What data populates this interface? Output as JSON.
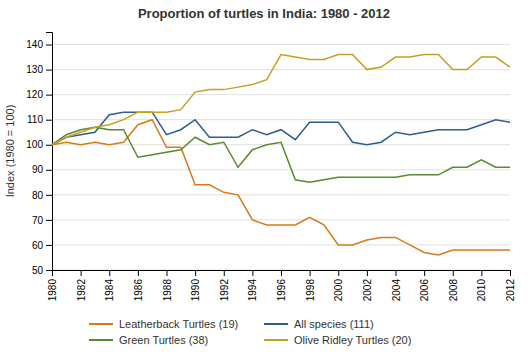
{
  "chart_data": {
    "type": "line",
    "title": "Proportion of turtles in India: 1980 - 2012",
    "ylabel": "Index (1980 = 100)",
    "x": [
      1980,
      1981,
      1982,
      1983,
      1984,
      1985,
      1986,
      1987,
      1988,
      1989,
      1990,
      1991,
      1992,
      1993,
      1994,
      1995,
      1996,
      1997,
      1998,
      1999,
      2000,
      2001,
      2002,
      2003,
      2004,
      2005,
      2006,
      2007,
      2008,
      2009,
      2010,
      2011,
      2012
    ],
    "series": [
      {
        "name": "Leatherback Turtles (19)",
        "color": "#d97a1a",
        "values": [
          100,
          101,
          100,
          101,
          100,
          101,
          108,
          110,
          99,
          99,
          84,
          84,
          81,
          80,
          70,
          68,
          68,
          68,
          71,
          68,
          60,
          60,
          62,
          63,
          63,
          60,
          57,
          56,
          58,
          58,
          58,
          58,
          58
        ]
      },
      {
        "name": "All species (111)",
        "color": "#2e5d8e",
        "values": [
          100,
          103,
          104,
          105,
          112,
          113,
          113,
          113,
          104,
          106,
          110,
          103,
          103,
          103,
          106,
          104,
          106,
          102,
          109,
          109,
          109,
          101,
          100,
          101,
          105,
          104,
          105,
          106,
          106,
          106,
          108,
          110,
          109
        ]
      },
      {
        "name": "Green Turtles (38)",
        "color": "#5a8a2e",
        "values": [
          100,
          104,
          106,
          107,
          106,
          106,
          95,
          96,
          97,
          98,
          103,
          100,
          101,
          91,
          98,
          100,
          101,
          86,
          85,
          86,
          87,
          87,
          87,
          87,
          87,
          88,
          88,
          88,
          91,
          91,
          94,
          91,
          91
        ]
      },
      {
        "name": "Olive Ridley Turtles (20)",
        "color": "#c8a020",
        "values": [
          100,
          103,
          105,
          107,
          108,
          110,
          113,
          113,
          113,
          114,
          121,
          122,
          122,
          123,
          124,
          126,
          136,
          135,
          134,
          134,
          136,
          136,
          130,
          131,
          135,
          135,
          136,
          136,
          130,
          130,
          135,
          135,
          131
        ]
      }
    ],
    "xlim": [
      1980,
      2012
    ],
    "xticks": [
      1980,
      1982,
      1984,
      1986,
      1988,
      1990,
      1992,
      1994,
      1996,
      1998,
      2000,
      2002,
      2004,
      2006,
      2008,
      2010,
      2012
    ],
    "ylim": [
      50,
      145
    ],
    "yticks": [
      50,
      60,
      70,
      80,
      90,
      100,
      110,
      120,
      130,
      140
    ],
    "grid": true,
    "legend": "bottom"
  }
}
